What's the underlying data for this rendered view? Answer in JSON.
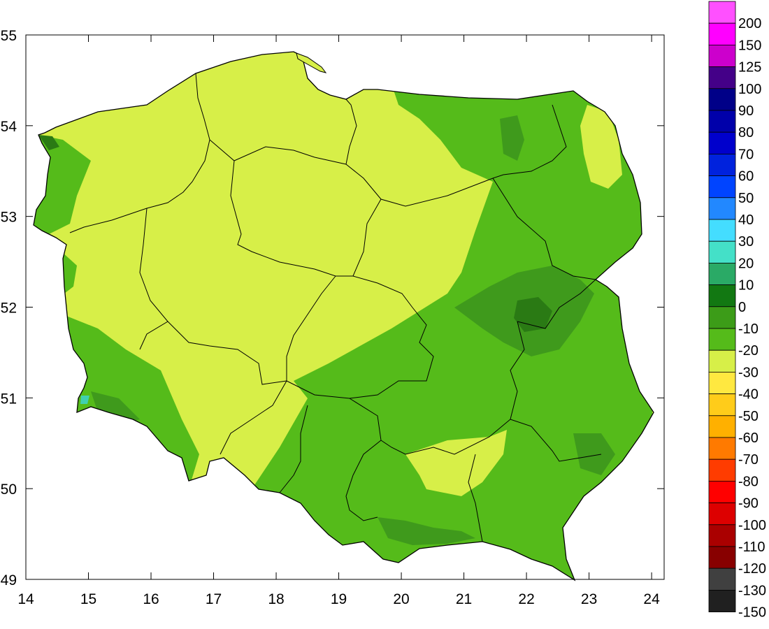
{
  "map": {
    "x_axis": {
      "range": [
        14,
        24.2
      ],
      "ticks": [
        14,
        15,
        16,
        17,
        18,
        19,
        20,
        21,
        22,
        23,
        24
      ],
      "tick_labels": [
        "14",
        "15",
        "16",
        "17",
        "18",
        "19",
        "20",
        "21",
        "22",
        "23",
        "24"
      ]
    },
    "y_axis": {
      "range": [
        49,
        55
      ],
      "ticks": [
        49,
        50,
        51,
        52,
        53,
        54,
        55
      ],
      "tick_labels": [
        "49",
        "50",
        "51",
        "52",
        "53",
        "54",
        "55"
      ]
    },
    "fill_colors": {
      "light": "#d7ef48",
      "mid": "#55bb1a",
      "dark": "#3f9a1c",
      "darkest": "#2a7a14",
      "teal": "#40d0b0"
    }
  },
  "legend": {
    "labels": [
      "200",
      "150",
      "125",
      "100",
      "90",
      "80",
      "70",
      "60",
      "50",
      "40",
      "30",
      "20",
      "10",
      "0",
      "-10",
      "-20",
      "-30",
      "-40",
      "-50",
      "-60",
      "-70",
      "-80",
      "-90",
      "-100",
      "-110",
      "-120",
      "-130",
      "-150"
    ],
    "colors": [
      "#ff50ff",
      "#ff00ff",
      "#cc00cc",
      "#440088",
      "#000088",
      "#0000aa",
      "#0000cc",
      "#0022dd",
      "#0044ff",
      "#2288ff",
      "#44ddff",
      "#44e0c8",
      "#2aaa66",
      "#127812",
      "#3c9c18",
      "#55bb1a",
      "#d7ef48",
      "#ffe840",
      "#ffcc1a",
      "#ffb000",
      "#ff7a00",
      "#ff3c00",
      "#ff0000",
      "#dd0000",
      "#aa0000",
      "#880000",
      "#404040",
      "#202020"
    ]
  }
}
